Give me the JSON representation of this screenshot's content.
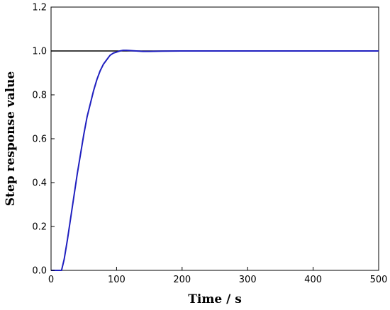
{
  "chart_data": {
    "type": "line",
    "title": "",
    "xlabel": "Time / s",
    "ylabel": "Step response value",
    "xlim": [
      0,
      500
    ],
    "ylim": [
      0,
      1.2
    ],
    "xticks": [
      0,
      100,
      200,
      300,
      400,
      500
    ],
    "yticks": [
      0.0,
      0.2,
      0.4,
      0.6,
      0.8,
      1.0,
      1.2
    ],
    "xtick_labels": [
      "0",
      "100",
      "200",
      "300",
      "400",
      "500"
    ],
    "ytick_labels": [
      "0.0",
      "0.2",
      "0.4",
      "0.6",
      "0.8",
      "1.0",
      "1.2"
    ],
    "grid": false,
    "legend": "none",
    "series": [
      {
        "color": "#000000",
        "x": [
          0,
          500
        ],
        "y": [
          1.0,
          1.0
        ]
      },
      {
        "color": "#1f1fbf",
        "x": [
          0,
          16,
          20,
          25,
          30,
          35,
          40,
          45,
          50,
          55,
          60,
          65,
          70,
          75,
          80,
          85,
          90,
          95,
          100,
          105,
          110,
          115,
          120,
          130,
          140,
          150,
          170,
          200,
          300,
          400,
          500
        ],
        "y": [
          0,
          0,
          0.05,
          0.14,
          0.24,
          0.34,
          0.44,
          0.53,
          0.62,
          0.7,
          0.76,
          0.82,
          0.87,
          0.91,
          0.94,
          0.96,
          0.98,
          0.99,
          0.995,
          1.0,
          1.003,
          1.003,
          1.002,
          1.0,
          0.998,
          0.998,
          0.999,
          1.0,
          1.0,
          1.0,
          1.0
        ]
      }
    ]
  }
}
